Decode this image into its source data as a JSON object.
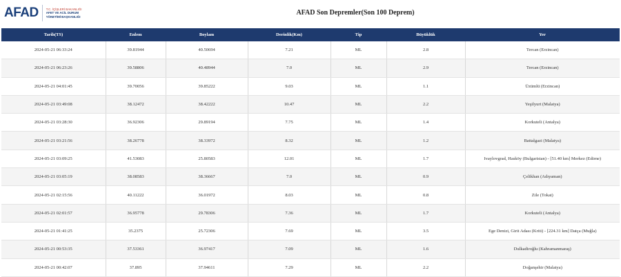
{
  "brand": {
    "logo_text": "AFAD",
    "subtitle_line1": "T.C. İÇİŞLERİ BAKANLIĞI",
    "subtitle_line2": "AFET VE ACİL DURUM",
    "subtitle_line3": "YÖNETİMİ BAŞKANLIĞI",
    "color": "#1a3f7a"
  },
  "page_title": "AFAD Son Depremler(Son 100 Deprem)",
  "table": {
    "header_bg": "#1e3a6e",
    "columns": [
      "Tarih(TS)",
      "Enlem",
      "Boylam",
      "Derinlik(Km)",
      "Tip",
      "Büyüklük",
      "Yer"
    ],
    "rows": [
      {
        "tarih": "2024-05-21 06:33:24",
        "enlem": "39.81944",
        "boylam": "40.50694",
        "derinlik": "7.21",
        "tip": "ML",
        "buyukluk": "2.8",
        "yer": "Tercan (Erzincan)"
      },
      {
        "tarih": "2024-05-21 06:23:26",
        "enlem": "39.58806",
        "boylam": "40.48944",
        "derinlik": "7.0",
        "tip": "ML",
        "buyukluk": "2.9",
        "yer": "Tercan (Erzincan)"
      },
      {
        "tarih": "2024-05-21 04:01:45",
        "enlem": "39.70056",
        "boylam": "39.85222",
        "derinlik": "9.03",
        "tip": "ML",
        "buyukluk": "1.1",
        "yer": "Üzümlü (Erzincan)"
      },
      {
        "tarih": "2024-05-21 03:49:08",
        "enlem": "38.12472",
        "boylam": "38.42222",
        "derinlik": "10.47",
        "tip": "ML",
        "buyukluk": "2.2",
        "yer": "Yeşilyurt (Malatya)"
      },
      {
        "tarih": "2024-05-21 03:28:30",
        "enlem": "36.92306",
        "boylam": "29.89194",
        "derinlik": "7.75",
        "tip": "ML",
        "buyukluk": "1.4",
        "yer": "Korkuteli (Antalya)"
      },
      {
        "tarih": "2024-05-21 03:21:56",
        "enlem": "38.26778",
        "boylam": "38.33972",
        "derinlik": "8.32",
        "tip": "ML",
        "buyukluk": "1.2",
        "yer": "Battalgazi (Malatya)"
      },
      {
        "tarih": "2024-05-21 03:09:25",
        "enlem": "41.53083",
        "boylam": "25.80583",
        "derinlik": "12.01",
        "tip": "ML",
        "buyukluk": "1.7",
        "yer": "Ivaylovgrad, Hasköy (Bulgaristan) - [51.40 km] Merkez (Edirne)"
      },
      {
        "tarih": "2024-05-21 03:05:19",
        "enlem": "38.08583",
        "boylam": "38.36667",
        "derinlik": "7.0",
        "tip": "ML",
        "buyukluk": "0.9",
        "yer": "Çelikhan (Adıyaman)"
      },
      {
        "tarih": "2024-05-21 02:15:56",
        "enlem": "40.11222",
        "boylam": "36.01972",
        "derinlik": "8.03",
        "tip": "ML",
        "buyukluk": "0.8",
        "yer": "Zile (Tokat)"
      },
      {
        "tarih": "2024-05-21 02:01:57",
        "enlem": "36.95778",
        "boylam": "29.78306",
        "derinlik": "7.36",
        "tip": "ML",
        "buyukluk": "1.7",
        "yer": "Korkuteli (Antalya)"
      },
      {
        "tarih": "2024-05-21 01:41:25",
        "enlem": "35.2375",
        "boylam": "25.72306",
        "derinlik": "7.69",
        "tip": "ML",
        "buyukluk": "3.5",
        "yer": "Ege Denizi, Girit Adası (Kriti) - [224.31 km] Datça (Muğla)"
      },
      {
        "tarih": "2024-05-21 00:53:35",
        "enlem": "37.53361",
        "boylam": "36.97417",
        "derinlik": "7.09",
        "tip": "ML",
        "buyukluk": "1.6",
        "yer": "Dulkadiroğlu (Kahramanmaraş)"
      },
      {
        "tarih": "2024-05-21 00:42:07",
        "enlem": "37.895",
        "boylam": "37.94611",
        "derinlik": "7.29",
        "tip": "ML",
        "buyukluk": "2.2",
        "yer": "Doğanşehir (Malatya)"
      }
    ]
  }
}
